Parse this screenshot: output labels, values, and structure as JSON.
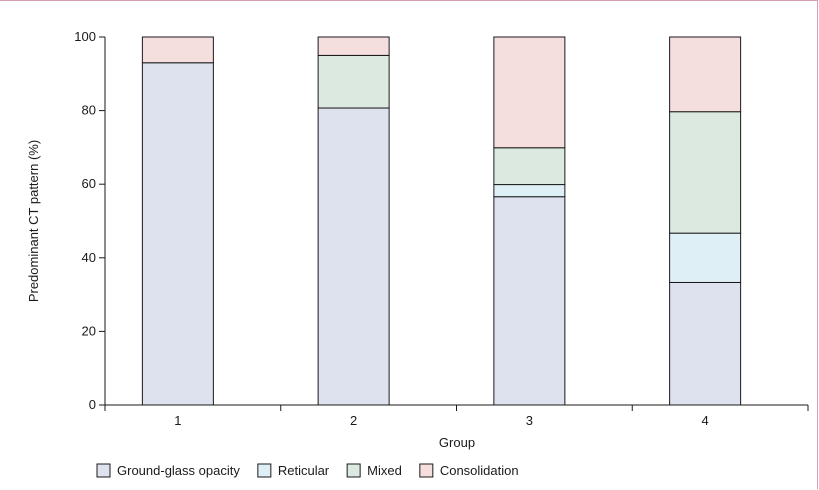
{
  "chart_data": {
    "type": "bar",
    "stacked": true,
    "xlabel": "Group",
    "ylabel": "Predominant CT pattern (%)",
    "ylim": [
      0,
      100
    ],
    "yticks": [
      0,
      20,
      40,
      60,
      80,
      100
    ],
    "categories": [
      "1",
      "2",
      "3",
      "4"
    ],
    "series": [
      {
        "name": "Ground-glass opacity",
        "color": "#dde2ee",
        "values": [
          93,
          80.7,
          56.6,
          33.3
        ]
      },
      {
        "name": "Reticular",
        "color": "#def0f6",
        "values": [
          0,
          0,
          3.3,
          13.4
        ]
      },
      {
        "name": "Mixed",
        "color": "#dbe9e1",
        "values": [
          0,
          14.3,
          10,
          33.0
        ]
      },
      {
        "name": "Consolidation",
        "color": "#f5dede",
        "values": [
          7,
          5,
          30.1,
          20.3
        ]
      }
    ],
    "legend_position": "bottom",
    "grid": false
  }
}
